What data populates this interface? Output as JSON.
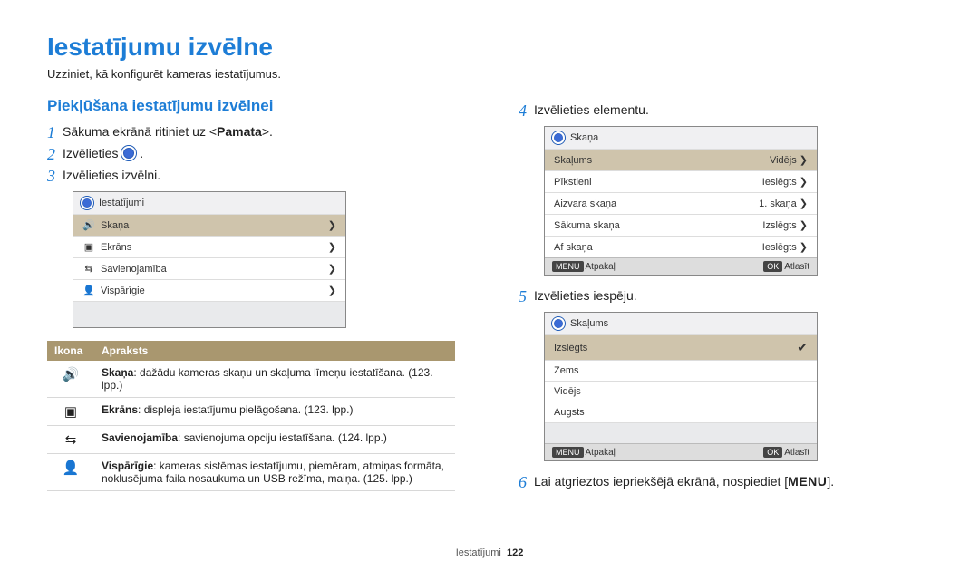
{
  "page_title": "Iestatījumu izvēlne",
  "subtitle": "Uzziniet, kā konfigurēt kameras iestatījumus.",
  "section_heading": "Piekļūšana iestatījumu izvēlnei",
  "steps": {
    "s1_pre": "Sākuma ekrānā ritiniet uz <",
    "s1_bold": "Pamata",
    "s1_post": ">.",
    "s2": "Izvēlieties ",
    "s2_post": " .",
    "s3": "Izvēlieties izvēlni.",
    "s4": "Izvēlieties elementu.",
    "s5": "Izvēlieties iespēju.",
    "s6_pre": "Lai atgrieztos iepriekšējā ekrānā, nospiediet [",
    "s6_menu": "MENU",
    "s6_post": "]."
  },
  "numbers": {
    "n1": "1",
    "n2": "2",
    "n3": "3",
    "n4": "4",
    "n5": "5",
    "n6": "6"
  },
  "cam1": {
    "header": "Iestatījumi",
    "rows": [
      {
        "icon": "🔊",
        "label": "Skaņa"
      },
      {
        "icon": "▣",
        "label": "Ekrāns"
      },
      {
        "icon": "⇆",
        "label": "Savienojamība"
      },
      {
        "icon": "👤",
        "label": "Vispārīgie"
      }
    ]
  },
  "cam2": {
    "header": "Skaņa",
    "rows": [
      {
        "label": "Skaļums",
        "value": "Vidējs"
      },
      {
        "label": "Pīkstieni",
        "value": "Ieslēgts"
      },
      {
        "label": "Aizvara skaņa",
        "value": "1. skaņa"
      },
      {
        "label": "Sākuma skaņa",
        "value": "Izslēgts"
      },
      {
        "label": "Af skaņa",
        "value": "Ieslēgts"
      }
    ],
    "footer": {
      "back_key": "MENU",
      "back": "Atpakaļ",
      "ok_key": "OK",
      "ok": "Atlasīt"
    }
  },
  "cam3": {
    "header": "Skaļums",
    "rows": [
      {
        "label": "Izslēgts",
        "checked": true
      },
      {
        "label": "Zems"
      },
      {
        "label": "Vidējs"
      },
      {
        "label": "Augsts"
      }
    ],
    "footer": {
      "back_key": "MENU",
      "back": "Atpakaļ",
      "ok_key": "OK",
      "ok": "Atlasīt"
    }
  },
  "table": {
    "head_icon": "Ikona",
    "head_desc": "Apraksts",
    "rows": [
      {
        "icon": "🔊",
        "bold": "Skaņa",
        "text": ": dažādu kameras skaņu un skaļuma līmeņu iestatīšana. (123. lpp.)"
      },
      {
        "icon": "▣",
        "bold": "Ekrāns",
        "text": ": displeja iestatījumu pielāgošana. (123. lpp.)"
      },
      {
        "icon": "⇆",
        "bold": "Savienojamība",
        "text": ": savienojuma opciju iestatīšana. (124. lpp.)"
      },
      {
        "icon": "👤",
        "bold": "Vispārīgie",
        "text": ": kameras sistēmas iestatījumu, piemēram, atmiņas formāta, noklusējuma faila nosaukuma un USB režīma, maiņa. (125. lpp.)"
      }
    ]
  },
  "footer": {
    "section": "Iestatījumi",
    "page": "122"
  },
  "colors": {
    "accent": "#1d7dd6",
    "table_head": "#a9976f",
    "cam_selected": "#cfc4ac"
  }
}
